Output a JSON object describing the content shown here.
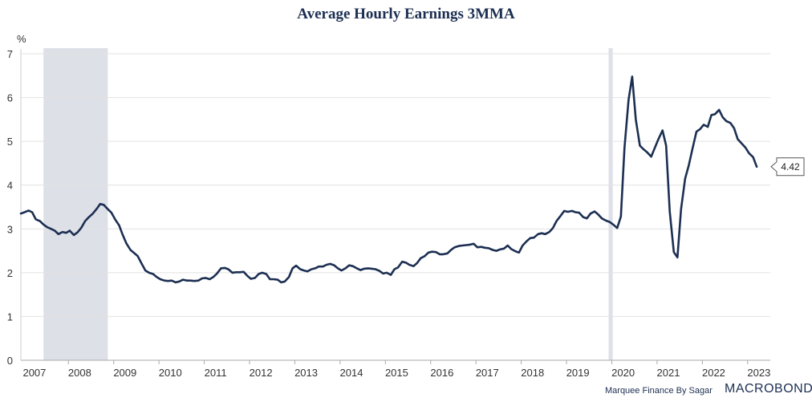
{
  "chart_data": {
    "type": "line",
    "title": "Average Hourly Earnings 3MMA",
    "ylabel": "%",
    "xlabel": "",
    "ylim": [
      0,
      7
    ],
    "yticks": [
      0,
      1,
      2,
      3,
      4,
      5,
      6,
      7
    ],
    "xlim": [
      2007.0,
      2023.55
    ],
    "x_tick_labels": [
      "2007",
      "2008",
      "2009",
      "2010",
      "2011",
      "2012",
      "2013",
      "2014",
      "2015",
      "2016",
      "2017",
      "2018",
      "2019",
      "2020",
      "2021",
      "2022",
      "2023"
    ],
    "x_tick_positions": [
      2007.3,
      2008.3,
      2009.3,
      2010.3,
      2011.3,
      2012.3,
      2013.3,
      2014.3,
      2015.3,
      2016.3,
      2017.3,
      2018.3,
      2019.3,
      2020.3,
      2021.3,
      2022.3,
      2023.3
    ],
    "grid": true,
    "recessions": [
      {
        "start": 2007.5,
        "end": 2008.92
      },
      {
        "start": 2019.98,
        "end": 2020.07
      }
    ],
    "last_value_label": "4.42",
    "series": [
      {
        "name": "Average Hourly Earnings 3MMA",
        "color": "#1c2f52",
        "points": [
          [
            2007.0,
            3.35
          ],
          [
            2007.08,
            3.38
          ],
          [
            2007.17,
            3.42
          ],
          [
            2007.25,
            3.38
          ],
          [
            2007.33,
            3.22
          ],
          [
            2007.42,
            3.18
          ],
          [
            2007.5,
            3.1
          ],
          [
            2007.58,
            3.04
          ],
          [
            2007.67,
            3.0
          ],
          [
            2007.75,
            2.96
          ],
          [
            2007.83,
            2.88
          ],
          [
            2007.92,
            2.93
          ],
          [
            2008.0,
            2.91
          ],
          [
            2008.08,
            2.96
          ],
          [
            2008.17,
            2.86
          ],
          [
            2008.25,
            2.92
          ],
          [
            2008.33,
            3.02
          ],
          [
            2008.42,
            3.18
          ],
          [
            2008.5,
            3.27
          ],
          [
            2008.58,
            3.34
          ],
          [
            2008.67,
            3.45
          ],
          [
            2008.75,
            3.57
          ],
          [
            2008.83,
            3.55
          ],
          [
            2008.92,
            3.45
          ],
          [
            2009.0,
            3.37
          ],
          [
            2009.08,
            3.22
          ],
          [
            2009.17,
            3.08
          ],
          [
            2009.25,
            2.86
          ],
          [
            2009.33,
            2.67
          ],
          [
            2009.42,
            2.52
          ],
          [
            2009.5,
            2.45
          ],
          [
            2009.58,
            2.38
          ],
          [
            2009.67,
            2.2
          ],
          [
            2009.75,
            2.05
          ],
          [
            2009.83,
            2.0
          ],
          [
            2009.92,
            1.97
          ],
          [
            2010.0,
            1.9
          ],
          [
            2010.08,
            1.85
          ],
          [
            2010.17,
            1.82
          ],
          [
            2010.25,
            1.81
          ],
          [
            2010.33,
            1.82
          ],
          [
            2010.42,
            1.78
          ],
          [
            2010.5,
            1.8
          ],
          [
            2010.58,
            1.84
          ],
          [
            2010.67,
            1.82
          ],
          [
            2010.75,
            1.82
          ],
          [
            2010.83,
            1.81
          ],
          [
            2010.92,
            1.82
          ],
          [
            2011.0,
            1.87
          ],
          [
            2011.08,
            1.88
          ],
          [
            2011.17,
            1.85
          ],
          [
            2011.25,
            1.9
          ],
          [
            2011.33,
            1.98
          ],
          [
            2011.42,
            2.1
          ],
          [
            2011.5,
            2.11
          ],
          [
            2011.58,
            2.08
          ],
          [
            2011.67,
            2.0
          ],
          [
            2011.75,
            2.01
          ],
          [
            2011.83,
            2.01
          ],
          [
            2011.92,
            2.02
          ],
          [
            2012.0,
            1.93
          ],
          [
            2012.08,
            1.86
          ],
          [
            2012.17,
            1.88
          ],
          [
            2012.25,
            1.97
          ],
          [
            2012.33,
            2.0
          ],
          [
            2012.42,
            1.97
          ],
          [
            2012.5,
            1.85
          ],
          [
            2012.58,
            1.85
          ],
          [
            2012.67,
            1.84
          ],
          [
            2012.75,
            1.78
          ],
          [
            2012.83,
            1.8
          ],
          [
            2012.92,
            1.9
          ],
          [
            2013.0,
            2.1
          ],
          [
            2013.08,
            2.16
          ],
          [
            2013.17,
            2.08
          ],
          [
            2013.25,
            2.05
          ],
          [
            2013.33,
            2.03
          ],
          [
            2013.42,
            2.08
          ],
          [
            2013.5,
            2.1
          ],
          [
            2013.58,
            2.14
          ],
          [
            2013.67,
            2.14
          ],
          [
            2013.75,
            2.18
          ],
          [
            2013.83,
            2.2
          ],
          [
            2013.92,
            2.17
          ],
          [
            2014.0,
            2.1
          ],
          [
            2014.08,
            2.05
          ],
          [
            2014.17,
            2.1
          ],
          [
            2014.25,
            2.17
          ],
          [
            2014.33,
            2.15
          ],
          [
            2014.42,
            2.1
          ],
          [
            2014.5,
            2.06
          ],
          [
            2014.58,
            2.09
          ],
          [
            2014.67,
            2.1
          ],
          [
            2014.75,
            2.09
          ],
          [
            2014.83,
            2.08
          ],
          [
            2014.92,
            2.04
          ],
          [
            2015.0,
            1.98
          ],
          [
            2015.08,
            2.0
          ],
          [
            2015.17,
            1.95
          ],
          [
            2015.25,
            2.08
          ],
          [
            2015.33,
            2.12
          ],
          [
            2015.42,
            2.25
          ],
          [
            2015.5,
            2.23
          ],
          [
            2015.58,
            2.18
          ],
          [
            2015.67,
            2.15
          ],
          [
            2015.75,
            2.22
          ],
          [
            2015.83,
            2.33
          ],
          [
            2015.92,
            2.38
          ],
          [
            2016.0,
            2.46
          ],
          [
            2016.08,
            2.48
          ],
          [
            2016.17,
            2.47
          ],
          [
            2016.25,
            2.42
          ],
          [
            2016.33,
            2.42
          ],
          [
            2016.42,
            2.44
          ],
          [
            2016.5,
            2.52
          ],
          [
            2016.58,
            2.58
          ],
          [
            2016.67,
            2.61
          ],
          [
            2016.75,
            2.62
          ],
          [
            2016.83,
            2.63
          ],
          [
            2016.92,
            2.64
          ],
          [
            2017.0,
            2.66
          ],
          [
            2017.08,
            2.58
          ],
          [
            2017.17,
            2.59
          ],
          [
            2017.25,
            2.57
          ],
          [
            2017.33,
            2.56
          ],
          [
            2017.42,
            2.52
          ],
          [
            2017.5,
            2.5
          ],
          [
            2017.58,
            2.53
          ],
          [
            2017.67,
            2.55
          ],
          [
            2017.75,
            2.62
          ],
          [
            2017.83,
            2.54
          ],
          [
            2017.92,
            2.49
          ],
          [
            2018.0,
            2.46
          ],
          [
            2018.08,
            2.62
          ],
          [
            2018.17,
            2.72
          ],
          [
            2018.25,
            2.79
          ],
          [
            2018.33,
            2.8
          ],
          [
            2018.42,
            2.88
          ],
          [
            2018.5,
            2.9
          ],
          [
            2018.58,
            2.88
          ],
          [
            2018.67,
            2.93
          ],
          [
            2018.75,
            3.02
          ],
          [
            2018.83,
            3.18
          ],
          [
            2018.92,
            3.3
          ],
          [
            2019.0,
            3.41
          ],
          [
            2019.08,
            3.39
          ],
          [
            2019.17,
            3.41
          ],
          [
            2019.25,
            3.38
          ],
          [
            2019.33,
            3.37
          ],
          [
            2019.42,
            3.27
          ],
          [
            2019.5,
            3.24
          ],
          [
            2019.58,
            3.35
          ],
          [
            2019.67,
            3.4
          ],
          [
            2019.75,
            3.33
          ],
          [
            2019.83,
            3.24
          ],
          [
            2019.92,
            3.19
          ],
          [
            2020.0,
            3.16
          ],
          [
            2020.08,
            3.1
          ],
          [
            2020.17,
            3.02
          ],
          [
            2020.25,
            3.28
          ],
          [
            2020.33,
            4.85
          ],
          [
            2020.42,
            5.95
          ],
          [
            2020.5,
            6.48
          ],
          [
            2020.58,
            5.5
          ],
          [
            2020.67,
            4.9
          ],
          [
            2020.75,
            4.82
          ],
          [
            2020.83,
            4.75
          ],
          [
            2020.92,
            4.65
          ],
          [
            2021.0,
            4.85
          ],
          [
            2021.08,
            5.05
          ],
          [
            2021.17,
            5.25
          ],
          [
            2021.25,
            4.9
          ],
          [
            2021.33,
            3.4
          ],
          [
            2021.42,
            2.47
          ],
          [
            2021.5,
            2.35
          ],
          [
            2021.58,
            3.45
          ],
          [
            2021.67,
            4.15
          ],
          [
            2021.75,
            4.45
          ],
          [
            2021.83,
            4.82
          ],
          [
            2021.92,
            5.22
          ],
          [
            2022.0,
            5.28
          ],
          [
            2022.08,
            5.38
          ],
          [
            2022.17,
            5.33
          ],
          [
            2022.25,
            5.6
          ],
          [
            2022.33,
            5.62
          ],
          [
            2022.42,
            5.72
          ],
          [
            2022.5,
            5.55
          ],
          [
            2022.58,
            5.46
          ],
          [
            2022.67,
            5.42
          ],
          [
            2022.75,
            5.3
          ],
          [
            2022.83,
            5.05
          ],
          [
            2022.92,
            4.95
          ],
          [
            2023.0,
            4.86
          ],
          [
            2023.08,
            4.73
          ],
          [
            2023.17,
            4.64
          ],
          [
            2023.25,
            4.42
          ]
        ]
      }
    ]
  },
  "footer": {
    "source": "Marquee Finance By Sagar",
    "brand": "MACROBOND"
  }
}
